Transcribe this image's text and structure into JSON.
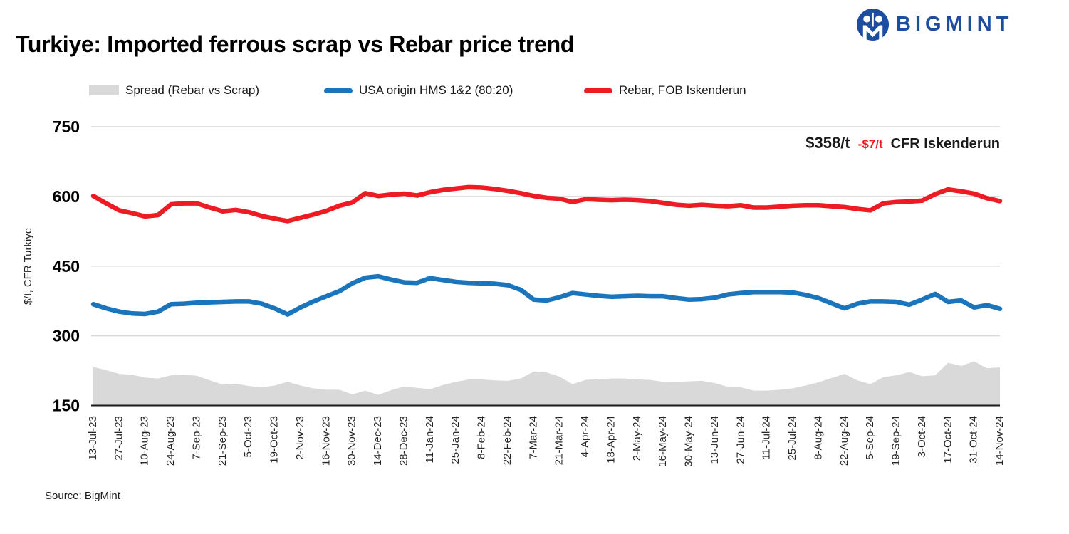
{
  "header": {
    "title": "Turkiye: Imported ferrous scrap vs Rebar price trend",
    "logo_text": "BIGMINT",
    "logo_color": "#1c4da1"
  },
  "legend": {
    "items": [
      {
        "label": "Spread (Rebar vs Scrap)",
        "color": "#d9d9d9",
        "swatch": "rect"
      },
      {
        "label": "USA origin HMS 1&2 (80:20)",
        "color": "#1b75bc",
        "swatch": "line"
      },
      {
        "label": "Rebar, FOB Iskenderun",
        "color": "#ed1c24",
        "swatch": "line"
      }
    ]
  },
  "annotation": {
    "price": "$358/t",
    "change": "-$7/t",
    "suffix": "CFR Iskenderun",
    "change_color": "#ed1c24"
  },
  "source": "Source: BigMint",
  "chart_data": {
    "type": "area+line combo",
    "title": "Turkiye: Imported ferrous scrap vs Rebar price trend",
    "xlabel": "",
    "ylabel": "$/t, CFR Turkiye",
    "ylim": [
      150,
      750
    ],
    "y_ticks": [
      150,
      300,
      450,
      600,
      750
    ],
    "grid": "horizontal",
    "legend_position": "top",
    "x_resolution": "weekly points, labels every 2 weeks",
    "x_tick_labels": [
      "13-Jul-23",
      "27-Jul-23",
      "10-Aug-23",
      "24-Aug-23",
      "7-Sep-23",
      "21-Sep-23",
      "5-Oct-23",
      "19-Oct-23",
      "2-Nov-23",
      "16-Nov-23",
      "30-Nov-23",
      "14-Dec-23",
      "28-Dec-23",
      "11-Jan-24",
      "25-Jan-24",
      "8-Feb-24",
      "22-Feb-24",
      "7-Mar-24",
      "21-Mar-24",
      "4-Apr-24",
      "18-Apr-24",
      "2-May-24",
      "16-May-24",
      "30-May-24",
      "13-Jun-24",
      "27-Jun-24",
      "11-Jul-24",
      "25-Jul-24",
      "8-Aug-24",
      "22-Aug-24",
      "5-Sep-24",
      "19-Sep-24",
      "3-Oct-24",
      "17-Oct-24",
      "31-Oct-24",
      "14-Nov-24"
    ],
    "series": [
      {
        "name": "Spread (Rebar vs Scrap)",
        "type": "area",
        "color": "#d9d9d9",
        "baseline": 150,
        "values": [
          233,
          226,
          218,
          216,
          210,
          208,
          215,
          216,
          214,
          204,
          195,
          197,
          192,
          189,
          193,
          201,
          193,
          187,
          184,
          184,
          174,
          182,
          173,
          183,
          191,
          188,
          185,
          194,
          201,
          206,
          206,
          204,
          203,
          208,
          223,
          221,
          212,
          196,
          205,
          207,
          208,
          208,
          206,
          205,
          201,
          201,
          202,
          203,
          198,
          190,
          189,
          182,
          182,
          184,
          187,
          193,
          200,
          209,
          218,
          204,
          196,
          211,
          215,
          222,
          213,
          215,
          242,
          235,
          245,
          230,
          232
        ]
      },
      {
        "name": "USA origin HMS 1&2 (80:20)",
        "type": "line",
        "color": "#1b75bc",
        "values": [
          368,
          359,
          352,
          348,
          347,
          352,
          368,
          369,
          371,
          372,
          373,
          374,
          374,
          369,
          359,
          346,
          361,
          374,
          385,
          396,
          413,
          425,
          428,
          421,
          415,
          414,
          424,
          420,
          416,
          414,
          413,
          412,
          409,
          399,
          378,
          376,
          383,
          392,
          389,
          386,
          384,
          385,
          386,
          385,
          385,
          381,
          378,
          379,
          382,
          389,
          392,
          394,
          394,
          394,
          393,
          388,
          381,
          370,
          359,
          369,
          374,
          374,
          373,
          367,
          378,
          390,
          373,
          376,
          361,
          366,
          358
        ]
      },
      {
        "name": "Rebar, FOB Iskenderun",
        "type": "line",
        "color": "#ed1c24",
        "values": [
          601,
          585,
          570,
          564,
          557,
          560,
          583,
          585,
          585,
          576,
          568,
          571,
          566,
          558,
          552,
          547,
          554,
          561,
          569,
          580,
          587,
          607,
          601,
          604,
          606,
          602,
          609,
          614,
          617,
          620,
          619,
          616,
          612,
          607,
          601,
          597,
          595,
          588,
          594,
          593,
          592,
          593,
          592,
          590,
          586,
          582,
          580,
          582,
          580,
          579,
          581,
          576,
          576,
          578,
          580,
          581,
          581,
          579,
          577,
          573,
          570,
          585,
          588,
          589,
          591,
          605,
          615,
          611,
          606,
          596,
          590
        ]
      }
    ]
  }
}
